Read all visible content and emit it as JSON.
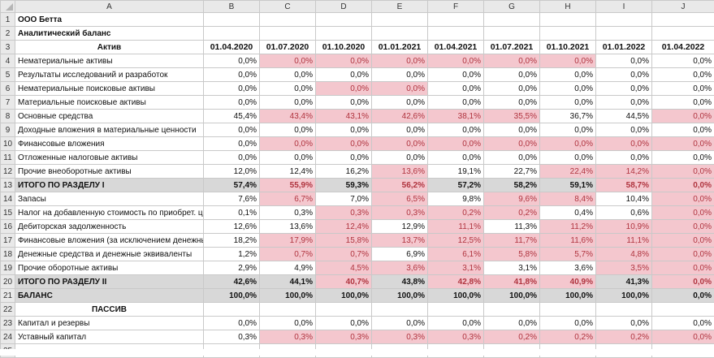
{
  "sheet": {
    "columns": [
      "A",
      "B",
      "C",
      "D",
      "E",
      "F",
      "G",
      "H",
      "I",
      "J"
    ],
    "rows": [
      {
        "num": "1",
        "type": "title",
        "label": "ООО Бетта",
        "cells": []
      },
      {
        "num": "2",
        "type": "title",
        "label": "Аналитический баланс",
        "cells": []
      },
      {
        "num": "3",
        "type": "header",
        "label": "Актив",
        "cells": [
          {
            "v": "01.04.2020"
          },
          {
            "v": "01.07.2020"
          },
          {
            "v": "01.10.2020"
          },
          {
            "v": "01.01.2021"
          },
          {
            "v": "01.04.2021"
          },
          {
            "v": "01.07.2021"
          },
          {
            "v": "01.10.2021"
          },
          {
            "v": "01.01.2022"
          },
          {
            "v": "01.04.2022"
          }
        ]
      },
      {
        "num": "4",
        "type": "data",
        "label": "Нематериальные активы",
        "cells": [
          {
            "v": "0,0%"
          },
          {
            "v": "0,0%",
            "hl": true
          },
          {
            "v": "0,0%",
            "hl": true
          },
          {
            "v": "0,0%",
            "hl": true
          },
          {
            "v": "0,0%",
            "hl": true
          },
          {
            "v": "0,0%",
            "hl": true
          },
          {
            "v": "0,0%",
            "hl": true
          },
          {
            "v": "0,0%"
          },
          {
            "v": "0,0%"
          }
        ]
      },
      {
        "num": "5",
        "type": "data",
        "label": "Результаты исследований и разработок",
        "cells": [
          {
            "v": "0,0%"
          },
          {
            "v": "0,0%"
          },
          {
            "v": "0,0%"
          },
          {
            "v": "0,0%"
          },
          {
            "v": "0,0%"
          },
          {
            "v": "0,0%"
          },
          {
            "v": "0,0%"
          },
          {
            "v": "0,0%"
          },
          {
            "v": "0,0%"
          }
        ]
      },
      {
        "num": "6",
        "type": "data",
        "label": "Нематериальные поисковые активы",
        "cells": [
          {
            "v": "0,0%"
          },
          {
            "v": "0,0%"
          },
          {
            "v": "0,0%",
            "hl": true
          },
          {
            "v": "0,0%",
            "hl": true
          },
          {
            "v": "0,0%"
          },
          {
            "v": "0,0%"
          },
          {
            "v": "0,0%"
          },
          {
            "v": "0,0%"
          },
          {
            "v": "0,0%"
          }
        ]
      },
      {
        "num": "7",
        "type": "data",
        "label": "Материальные поисковые активы",
        "cells": [
          {
            "v": "0,0%"
          },
          {
            "v": "0,0%"
          },
          {
            "v": "0,0%"
          },
          {
            "v": "0,0%"
          },
          {
            "v": "0,0%"
          },
          {
            "v": "0,0%"
          },
          {
            "v": "0,0%"
          },
          {
            "v": "0,0%"
          },
          {
            "v": "0,0%"
          }
        ]
      },
      {
        "num": "8",
        "type": "data",
        "label": "Основные средства",
        "cells": [
          {
            "v": "45,4%"
          },
          {
            "v": "43,4%",
            "hl": true
          },
          {
            "v": "43,1%",
            "hl": true
          },
          {
            "v": "42,6%",
            "hl": true
          },
          {
            "v": "38,1%",
            "hl": true
          },
          {
            "v": "35,5%",
            "hl": true
          },
          {
            "v": "36,7%"
          },
          {
            "v": "44,5%"
          },
          {
            "v": "0,0%",
            "hl": true
          }
        ]
      },
      {
        "num": "9",
        "type": "data",
        "label": "Доходные вложения в материальные ценности",
        "cells": [
          {
            "v": "0,0%"
          },
          {
            "v": "0,0%"
          },
          {
            "v": "0,0%"
          },
          {
            "v": "0,0%"
          },
          {
            "v": "0,0%"
          },
          {
            "v": "0,0%"
          },
          {
            "v": "0,0%"
          },
          {
            "v": "0,0%"
          },
          {
            "v": "0,0%"
          }
        ]
      },
      {
        "num": "10",
        "type": "data",
        "label": "Финансовые вложения",
        "cells": [
          {
            "v": "0,0%"
          },
          {
            "v": "0,0%",
            "hl": true
          },
          {
            "v": "0,0%",
            "hl": true
          },
          {
            "v": "0,0%",
            "hl": true
          },
          {
            "v": "0,0%",
            "hl": true
          },
          {
            "v": "0,0%",
            "hl": true
          },
          {
            "v": "0,0%",
            "hl": true
          },
          {
            "v": "0,0%",
            "hl": true
          },
          {
            "v": "0,0%",
            "hl": true
          }
        ]
      },
      {
        "num": "11",
        "type": "data",
        "label": "Отложенные налоговые активы",
        "cells": [
          {
            "v": "0,0%"
          },
          {
            "v": "0,0%"
          },
          {
            "v": "0,0%"
          },
          {
            "v": "0,0%"
          },
          {
            "v": "0,0%"
          },
          {
            "v": "0,0%"
          },
          {
            "v": "0,0%"
          },
          {
            "v": "0,0%"
          },
          {
            "v": "0,0%"
          }
        ]
      },
      {
        "num": "12",
        "type": "data",
        "label": "Прочие внеоборотные активы",
        "cells": [
          {
            "v": "12,0%"
          },
          {
            "v": "12,4%"
          },
          {
            "v": "16,2%"
          },
          {
            "v": "13,6%",
            "hl": true
          },
          {
            "v": "19,1%"
          },
          {
            "v": "22,7%"
          },
          {
            "v": "22,4%",
            "hl": true
          },
          {
            "v": "14,2%",
            "hl": true
          },
          {
            "v": "0,0%",
            "hl": true
          }
        ]
      },
      {
        "num": "13",
        "type": "total",
        "label": "ИТОГО ПО РАЗДЕЛУ I",
        "cells": [
          {
            "v": "57,4%"
          },
          {
            "v": "55,9%",
            "hl": true
          },
          {
            "v": "59,3%"
          },
          {
            "v": "56,2%",
            "hl": true
          },
          {
            "v": "57,2%"
          },
          {
            "v": "58,2%"
          },
          {
            "v": "59,1%"
          },
          {
            "v": "58,7%",
            "hl": true
          },
          {
            "v": "0,0%",
            "hl": true
          }
        ]
      },
      {
        "num": "14",
        "type": "data",
        "label": "Запасы",
        "cells": [
          {
            "v": "7,6%"
          },
          {
            "v": "6,7%",
            "hl": true
          },
          {
            "v": "7,0%"
          },
          {
            "v": "6,5%",
            "hl": true
          },
          {
            "v": "9,8%"
          },
          {
            "v": "9,6%",
            "hl": true
          },
          {
            "v": "8,4%",
            "hl": true
          },
          {
            "v": "10,4%"
          },
          {
            "v": "0,0%",
            "hl": true
          }
        ]
      },
      {
        "num": "15",
        "type": "data",
        "label": "Налог на добавленную стоимость по приобрет. це",
        "cells": [
          {
            "v": "0,1%"
          },
          {
            "v": "0,3%"
          },
          {
            "v": "0,3%",
            "hl": true
          },
          {
            "v": "0,3%",
            "hl": true
          },
          {
            "v": "0,2%",
            "hl": true
          },
          {
            "v": "0,2%",
            "hl": true
          },
          {
            "v": "0,4%"
          },
          {
            "v": "0,6%"
          },
          {
            "v": "0,0%",
            "hl": true
          }
        ]
      },
      {
        "num": "16",
        "type": "data",
        "label": "Дебиторская задолженность",
        "cells": [
          {
            "v": "12,6%"
          },
          {
            "v": "13,6%"
          },
          {
            "v": "12,4%",
            "hl": true
          },
          {
            "v": "12,9%"
          },
          {
            "v": "11,1%",
            "hl": true
          },
          {
            "v": "11,3%"
          },
          {
            "v": "11,2%",
            "hl": true
          },
          {
            "v": "10,9%",
            "hl": true
          },
          {
            "v": "0,0%",
            "hl": true
          }
        ]
      },
      {
        "num": "17",
        "type": "data",
        "label": "Финансовые вложения (за исключением денежны",
        "cells": [
          {
            "v": "18,2%"
          },
          {
            "v": "17,9%",
            "hl": true
          },
          {
            "v": "15,8%",
            "hl": true
          },
          {
            "v": "13,7%",
            "hl": true
          },
          {
            "v": "12,5%",
            "hl": true
          },
          {
            "v": "11,7%",
            "hl": true
          },
          {
            "v": "11,6%",
            "hl": true
          },
          {
            "v": "11,1%",
            "hl": true
          },
          {
            "v": "0,0%",
            "hl": true
          }
        ]
      },
      {
        "num": "18",
        "type": "data",
        "label": "Денежные средства и денежные эквиваленты",
        "cells": [
          {
            "v": "1,2%"
          },
          {
            "v": "0,7%",
            "hl": true
          },
          {
            "v": "0,7%",
            "hl": true
          },
          {
            "v": "6,9%"
          },
          {
            "v": "6,1%",
            "hl": true
          },
          {
            "v": "5,8%",
            "hl": true
          },
          {
            "v": "5,7%",
            "hl": true
          },
          {
            "v": "4,8%",
            "hl": true
          },
          {
            "v": "0,0%",
            "hl": true
          }
        ]
      },
      {
        "num": "19",
        "type": "data",
        "label": "Прочие оборотные активы",
        "cells": [
          {
            "v": "2,9%"
          },
          {
            "v": "4,9%"
          },
          {
            "v": "4,5%",
            "hl": true
          },
          {
            "v": "3,6%",
            "hl": true
          },
          {
            "v": "3,1%",
            "hl": true
          },
          {
            "v": "3,1%"
          },
          {
            "v": "3,6%"
          },
          {
            "v": "3,5%",
            "hl": true
          },
          {
            "v": "0,0%",
            "hl": true
          }
        ]
      },
      {
        "num": "20",
        "type": "total",
        "label": "ИТОГО ПО РАЗДЕЛУ II",
        "cells": [
          {
            "v": "42,6%"
          },
          {
            "v": "44,1%"
          },
          {
            "v": "40,7%",
            "hl": true
          },
          {
            "v": "43,8%"
          },
          {
            "v": "42,8%",
            "hl": true
          },
          {
            "v": "41,8%",
            "hl": true
          },
          {
            "v": "40,9%",
            "hl": true
          },
          {
            "v": "41,3%"
          },
          {
            "v": "0,0%",
            "hl": true
          }
        ]
      },
      {
        "num": "21",
        "type": "total",
        "label": "БАЛАНС",
        "cells": [
          {
            "v": "100,0%"
          },
          {
            "v": "100,0%"
          },
          {
            "v": "100,0%"
          },
          {
            "v": "100,0%"
          },
          {
            "v": "100,0%"
          },
          {
            "v": "100,0%"
          },
          {
            "v": "100,0%"
          },
          {
            "v": "100,0%"
          },
          {
            "v": "0,0%"
          }
        ]
      },
      {
        "num": "22",
        "type": "section",
        "label": "ПАССИВ",
        "cells": []
      },
      {
        "num": "23",
        "type": "data",
        "label": "Капитал и резервы",
        "cells": [
          {
            "v": "0,0%"
          },
          {
            "v": "0,0%"
          },
          {
            "v": "0,0%"
          },
          {
            "v": "0,0%"
          },
          {
            "v": "0,0%"
          },
          {
            "v": "0,0%"
          },
          {
            "v": "0,0%"
          },
          {
            "v": "0,0%"
          },
          {
            "v": "0,0%"
          }
        ]
      },
      {
        "num": "24",
        "type": "data",
        "label": "Уставный капитал",
        "cells": [
          {
            "v": "0,3%"
          },
          {
            "v": "0,3%",
            "hl": true
          },
          {
            "v": "0,3%",
            "hl": true
          },
          {
            "v": "0,3%",
            "hl": true
          },
          {
            "v": "0,3%",
            "hl": true
          },
          {
            "v": "0,2%",
            "hl": true
          },
          {
            "v": "0,2%",
            "hl": true
          },
          {
            "v": "0,2%",
            "hl": true
          },
          {
            "v": "0,0%",
            "hl": true
          }
        ]
      },
      {
        "num": "25",
        "type": "empty",
        "label": "",
        "cells": []
      }
    ]
  }
}
